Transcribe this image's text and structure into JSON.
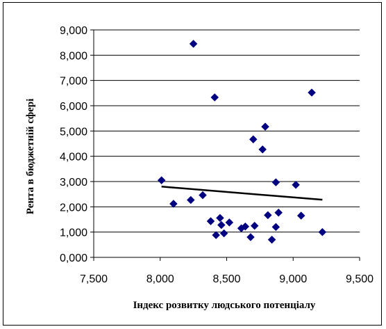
{
  "chart_data": {
    "type": "scatter",
    "title": "",
    "xlabel": "Індекс розвитку людського потенціалу",
    "ylabel": "Рента в бюджетній сфері",
    "xlim": [
      7.5,
      9.5
    ],
    "ylim": [
      0,
      9
    ],
    "x_ticks": [
      7.5,
      8.0,
      8.5,
      9.0,
      9.5
    ],
    "x_tick_labels": [
      "7,500",
      "8,000",
      "8,500",
      "9,000",
      "9,500"
    ],
    "y_ticks": [
      0,
      1,
      2,
      3,
      4,
      5,
      6,
      7,
      8,
      9
    ],
    "y_tick_labels": [
      "0,000",
      "1,000",
      "2,000",
      "3,000",
      "4,000",
      "5,000",
      "6,000",
      "7,000",
      "8,000",
      "9,000"
    ],
    "grid": "horizontal",
    "legend": "none",
    "marker_color": "#000080",
    "trendline_color": "#000000",
    "points": [
      {
        "x": 8.01,
        "y": 3.05
      },
      {
        "x": 8.1,
        "y": 2.12
      },
      {
        "x": 8.23,
        "y": 2.27
      },
      {
        "x": 8.25,
        "y": 8.45
      },
      {
        "x": 8.32,
        "y": 2.46
      },
      {
        "x": 8.38,
        "y": 1.43
      },
      {
        "x": 8.41,
        "y": 6.33
      },
      {
        "x": 8.42,
        "y": 0.88
      },
      {
        "x": 8.45,
        "y": 1.56
      },
      {
        "x": 8.46,
        "y": 1.28
      },
      {
        "x": 8.48,
        "y": 0.95
      },
      {
        "x": 8.52,
        "y": 1.38
      },
      {
        "x": 8.61,
        "y": 1.15
      },
      {
        "x": 8.64,
        "y": 1.22
      },
      {
        "x": 8.68,
        "y": 0.8
      },
      {
        "x": 8.7,
        "y": 4.67
      },
      {
        "x": 8.71,
        "y": 1.25
      },
      {
        "x": 8.77,
        "y": 4.27
      },
      {
        "x": 8.79,
        "y": 5.17
      },
      {
        "x": 8.81,
        "y": 1.67
      },
      {
        "x": 8.84,
        "y": 0.7
      },
      {
        "x": 8.87,
        "y": 1.2
      },
      {
        "x": 8.87,
        "y": 2.97
      },
      {
        "x": 8.89,
        "y": 1.77
      },
      {
        "x": 9.02,
        "y": 2.87
      },
      {
        "x": 9.06,
        "y": 1.65
      },
      {
        "x": 9.14,
        "y": 6.52
      },
      {
        "x": 9.22,
        "y": 1.0
      }
    ],
    "trendline": {
      "x": [
        8.01,
        9.22
      ],
      "y": [
        2.8,
        2.28
      ]
    }
  }
}
